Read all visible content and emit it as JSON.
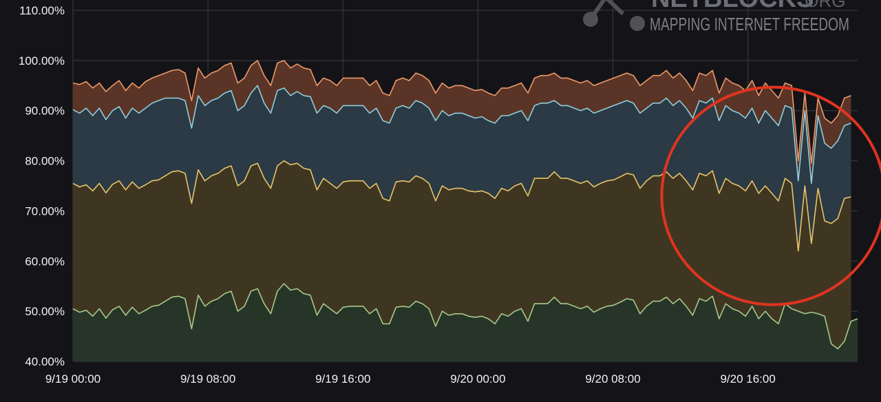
{
  "watermark": {
    "name": "NETBLOCKS",
    "suffix": ".ORG",
    "tagline": "MAPPING INTERNET FREEDOM"
  },
  "chart_data": {
    "type": "area",
    "title": "",
    "xlabel": "",
    "ylabel": "",
    "ylim": [
      40,
      110
    ],
    "y_ticks": [
      "110.00%",
      "100.00%",
      "90.00%",
      "80.00%",
      "70.00%",
      "60.00%",
      "50.00%",
      "40.00%"
    ],
    "x_ticks": [
      "9/19 00:00",
      "9/19 08:00",
      "9/19 16:00",
      "9/20 00:00",
      "9/20 08:00",
      "9/20 16:00"
    ],
    "x_range_hours": [
      0,
      46.5
    ],
    "stacked": true,
    "grid": true,
    "colors": {
      "background": "#141418",
      "grid": "#3a3c44",
      "series": [
        "#a9c98a",
        "#e8c56a",
        "#8fd0e0",
        "#f09a6a"
      ],
      "fills": [
        "#263528",
        "#3f3622",
        "#2b3a44",
        "#5a3527"
      ],
      "annotation": "#e0341f"
    },
    "annotation": {
      "shape": "circle",
      "description_hours_center": 41.5,
      "value_center": 73
    },
    "series": [
      {
        "values": [
          50.5,
          49.8,
          50.2,
          49.0,
          50.5,
          48.6,
          50.3,
          51.0,
          49.2,
          50.8,
          49.5,
          50.2,
          51.0,
          51.2,
          52.0,
          52.8,
          53.0,
          52.5,
          46.5,
          53.2,
          51.0,
          52.0,
          52.5,
          53.5,
          54.0,
          50.0,
          51.0,
          54.0,
          54.5,
          51.5,
          49.5,
          54.0,
          55.5,
          54.2,
          54.5,
          53.5,
          53.2,
          49.2,
          51.5,
          50.5,
          49.5,
          50.8,
          51.0,
          51.0,
          51.0,
          49.5,
          50.5,
          47.5,
          47.5,
          50.8,
          51.0,
          50.8,
          52.0,
          51.5,
          50.5,
          47.0,
          50.0,
          49.2,
          49.5,
          49.5,
          49.0,
          48.8,
          49.0,
          48.5,
          47.5,
          49.5,
          49.0,
          50.0,
          50.5,
          48.0,
          51.5,
          51.5,
          51.5,
          52.8,
          51.5,
          51.5,
          51.0,
          50.5,
          51.0,
          49.8,
          50.5,
          51.0,
          51.2,
          51.8,
          52.5,
          52.2,
          49.5,
          51.0,
          52.0,
          52.0,
          52.8,
          51.5,
          52.5,
          51.0,
          49.2,
          52.5,
          52.0,
          53.0,
          48.5,
          51.5,
          50.5,
          50.0,
          49.0,
          51.0,
          48.5,
          50.0,
          48.5,
          47.5,
          51.5,
          50.5,
          50.0,
          49.5,
          49.8,
          49.5,
          49.0,
          43.5,
          42.5,
          44.0,
          48.0,
          48.5
        ]
      },
      {
        "values": [
          75.5,
          74.8,
          75.2,
          74.0,
          75.5,
          73.6,
          75.3,
          76.0,
          74.2,
          75.8,
          74.5,
          75.2,
          76.0,
          76.2,
          77.0,
          77.8,
          78.0,
          77.5,
          71.5,
          78.2,
          76.0,
          77.0,
          77.5,
          78.5,
          79.0,
          75.0,
          76.0,
          79.0,
          79.5,
          76.5,
          74.5,
          79.0,
          80.0,
          79.2,
          79.5,
          78.5,
          78.2,
          74.2,
          76.5,
          75.5,
          74.5,
          75.8,
          76.0,
          76.0,
          76.0,
          74.5,
          75.5,
          72.5,
          72.0,
          75.8,
          76.0,
          75.8,
          77.0,
          76.5,
          75.5,
          72.0,
          75.0,
          74.2,
          74.5,
          74.5,
          74.0,
          73.8,
          74.0,
          73.5,
          72.5,
          74.5,
          74.0,
          75.0,
          75.5,
          73.0,
          76.5,
          76.5,
          76.5,
          77.8,
          76.5,
          76.5,
          76.0,
          75.5,
          76.0,
          74.8,
          75.5,
          76.0,
          76.2,
          76.8,
          77.5,
          77.2,
          74.5,
          76.0,
          77.0,
          77.0,
          77.8,
          76.5,
          77.5,
          76.0,
          74.2,
          77.5,
          77.0,
          78.0,
          73.5,
          76.5,
          75.5,
          75.0,
          74.0,
          76.0,
          73.5,
          75.0,
          73.5,
          72.0,
          76.5,
          75.5,
          62.0,
          75.0,
          63.5,
          74.5,
          68.0,
          67.5,
          68.5,
          72.5,
          72.8
        ]
      },
      {
        "values": [
          90.2,
          89.5,
          90.5,
          89.0,
          90.5,
          88.2,
          90.0,
          90.8,
          88.5,
          90.5,
          89.5,
          90.5,
          91.5,
          92.0,
          92.5,
          92.5,
          92.5,
          92.0,
          86.5,
          93.0,
          91.0,
          92.0,
          92.5,
          93.5,
          94.0,
          90.0,
          91.0,
          93.5,
          95.0,
          91.5,
          89.5,
          94.0,
          94.5,
          93.0,
          93.8,
          93.0,
          92.8,
          89.5,
          91.0,
          90.5,
          89.5,
          91.0,
          91.0,
          91.0,
          91.0,
          89.5,
          90.5,
          88.0,
          87.5,
          90.5,
          91.0,
          90.5,
          92.0,
          91.5,
          90.5,
          88.0,
          90.0,
          89.0,
          89.5,
          89.5,
          89.0,
          88.5,
          88.8,
          88.0,
          87.5,
          89.0,
          89.0,
          89.5,
          90.0,
          88.0,
          91.0,
          91.5,
          91.5,
          92.0,
          91.0,
          91.0,
          90.5,
          90.0,
          90.5,
          89.5,
          90.0,
          90.5,
          91.0,
          91.5,
          92.0,
          91.5,
          89.5,
          90.5,
          91.5,
          91.5,
          92.5,
          91.0,
          92.0,
          90.5,
          88.5,
          92.0,
          91.5,
          92.5,
          88.0,
          91.0,
          90.0,
          89.5,
          88.5,
          90.5,
          87.5,
          90.0,
          88.5,
          87.0,
          91.0,
          90.5,
          76.0,
          90.0,
          75.5,
          89.0,
          83.5,
          82.5,
          84.0,
          87.0,
          87.5
        ]
      },
      {
        "values": [
          95.5,
          95.2,
          95.8,
          94.5,
          95.5,
          93.8,
          95.0,
          96.0,
          94.0,
          95.5,
          94.5,
          95.8,
          96.5,
          97.0,
          97.5,
          98.0,
          98.2,
          97.5,
          92.0,
          98.5,
          96.5,
          97.5,
          98.0,
          99.0,
          99.5,
          95.5,
          96.5,
          99.0,
          100.0,
          97.0,
          95.0,
          99.5,
          100.0,
          98.5,
          99.3,
          98.5,
          98.2,
          95.0,
          96.5,
          96.0,
          95.0,
          96.5,
          96.5,
          96.5,
          96.5,
          95.0,
          96.0,
          93.5,
          93.0,
          96.0,
          96.5,
          96.0,
          97.5,
          97.0,
          96.0,
          93.5,
          95.5,
          94.5,
          95.0,
          95.0,
          94.5,
          94.0,
          94.2,
          93.5,
          93.0,
          94.5,
          94.5,
          95.0,
          95.5,
          93.5,
          96.5,
          97.0,
          97.0,
          97.5,
          96.5,
          96.5,
          96.0,
          95.5,
          96.0,
          95.0,
          95.5,
          96.0,
          96.5,
          97.0,
          97.5,
          97.0,
          95.0,
          96.0,
          97.0,
          97.0,
          98.0,
          96.5,
          97.5,
          96.0,
          94.0,
          97.5,
          97.0,
          98.0,
          93.5,
          96.5,
          95.5,
          95.0,
          94.0,
          96.0,
          93.0,
          95.5,
          94.0,
          92.5,
          95.5,
          95.0,
          80.0,
          93.5,
          79.5,
          92.5,
          88.5,
          87.5,
          89.0,
          92.5,
          93.0
        ]
      }
    ]
  }
}
